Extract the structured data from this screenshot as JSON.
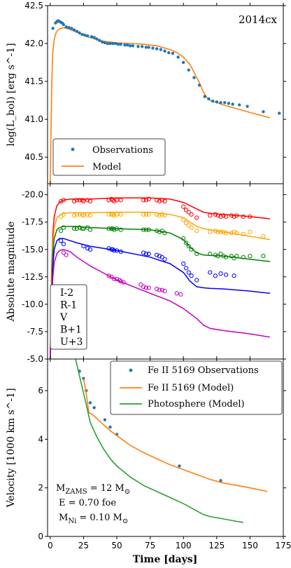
{
  "colors": {
    "obs": "#1f77b4",
    "model": "#ff7f0e",
    "photosphere": "#2ca02c",
    "I": "#ff0000",
    "R": "#ffa500",
    "V": "#008000",
    "B": "#0000ff",
    "U": "#c000c0"
  },
  "xlabel": "Time [days]",
  "xlim": [
    -2,
    175
  ],
  "xticks": [
    "0",
    "25",
    "50",
    "75",
    "100",
    "125",
    "150",
    "175"
  ],
  "chart_data": [
    {
      "type": "scatter",
      "title": "2014cx",
      "ylabel": "log(L_bol) [erg s^-1]",
      "ylim": [
        40.15,
        42.5
      ],
      "yticks": [
        "40.5",
        "41.0",
        "41.5",
        "42.0",
        "42.5"
      ],
      "legend_position": "bottom-left",
      "series": [
        {
          "name": "Observations",
          "style": "points",
          "x": [
            2,
            4,
            5,
            6,
            7,
            8,
            9,
            10,
            12,
            14,
            16,
            18,
            20,
            22,
            24,
            26,
            28,
            31,
            33,
            35,
            37,
            39,
            41,
            43,
            45,
            47,
            49,
            51,
            53,
            56,
            58,
            60,
            62,
            66,
            69,
            72,
            74,
            77,
            80,
            83,
            86,
            89,
            92,
            96,
            100,
            104,
            108,
            112,
            116,
            119,
            122,
            125,
            128,
            131,
            134,
            137,
            142,
            148,
            160,
            172
          ],
          "y": [
            42.2,
            42.27,
            42.29,
            42.3,
            42.29,
            42.28,
            42.27,
            42.25,
            42.22,
            42.21,
            42.2,
            42.18,
            42.16,
            42.14,
            42.12,
            42.11,
            42.1,
            42.09,
            42.08,
            42.06,
            42.04,
            42.02,
            42.01,
            42.0,
            42.0,
            42.0,
            42.0,
            41.99,
            41.99,
            41.98,
            41.98,
            41.97,
            41.97,
            41.96,
            41.96,
            41.95,
            41.95,
            41.94,
            41.93,
            41.92,
            41.9,
            41.88,
            41.87,
            41.82,
            41.75,
            41.65,
            41.55,
            41.45,
            41.3,
            41.27,
            41.24,
            41.23,
            41.22,
            41.22,
            41.21,
            41.2,
            41.19,
            41.17,
            41.1,
            41.08
          ]
        },
        {
          "name": "Model",
          "style": "line",
          "x": [
            0,
            0.5,
            1,
            1.5,
            2,
            3,
            4,
            5,
            6,
            8,
            10,
            12,
            14,
            17,
            20,
            25,
            30,
            35,
            40,
            50,
            60,
            70,
            80,
            90,
            95,
            100,
            105,
            108,
            112,
            115,
            118,
            120,
            125,
            130,
            140,
            150,
            165
          ],
          "y": [
            40.15,
            40.8,
            41.3,
            41.7,
            41.9,
            42.05,
            42.12,
            42.16,
            42.18,
            42.2,
            42.21,
            42.2,
            42.19,
            42.17,
            42.15,
            42.11,
            42.08,
            42.05,
            42.03,
            42.01,
            42.0,
            41.99,
            41.97,
            41.92,
            41.88,
            41.82,
            41.72,
            41.62,
            41.48,
            41.36,
            41.28,
            41.25,
            41.22,
            41.19,
            41.14,
            41.09,
            41.02
          ]
        }
      ]
    },
    {
      "type": "scatter",
      "ylabel": "Absolute magnitude",
      "ylim": [
        -21.0,
        -5.0
      ],
      "yticks": [
        "-20.0",
        "-17.5",
        "-15.0",
        "-12.5",
        "-10.0",
        "-7.5",
        "-5.0"
      ],
      "legend_position": "bottom-left",
      "series": [
        {
          "name": "I-2",
          "color_key": "I",
          "obs_x": [
            8,
            10,
            18,
            20,
            22,
            24,
            25,
            28,
            30,
            44,
            46,
            47,
            48,
            50,
            53,
            70,
            72,
            74,
            80,
            82,
            84,
            86,
            100,
            102,
            104,
            106,
            110,
            120,
            124,
            126,
            128,
            130,
            132,
            136,
            138,
            140,
            145,
            150
          ],
          "obs_y": [
            -19.4,
            -19.5,
            -19.4,
            -19.5,
            -19.5,
            -19.5,
            -19.4,
            -19.5,
            -19.4,
            -19.5,
            -19.6,
            -19.5,
            -19.4,
            -19.5,
            -19.5,
            -19.5,
            -19.5,
            -19.6,
            -19.5,
            -19.4,
            -19.5,
            -19.4,
            -18.9,
            -18.6,
            -18.4,
            -18.2,
            -17.9,
            -18.1,
            -18.2,
            -18.1,
            -18.0,
            -18.1,
            -18.0,
            -18.1,
            -18.0,
            -18.1,
            -18.0,
            -18.0
          ],
          "model_x": [
            0,
            1,
            2,
            3,
            5,
            7,
            10,
            15,
            20,
            30,
            50,
            75,
            90,
            100,
            105,
            110,
            115,
            120,
            130,
            150,
            165
          ],
          "model_y": [
            -5.0,
            -13.0,
            -16.5,
            -18.0,
            -19.0,
            -19.3,
            -19.5,
            -19.6,
            -19.6,
            -19.6,
            -19.7,
            -19.7,
            -19.6,
            -19.3,
            -19.0,
            -18.7,
            -18.4,
            -18.3,
            -18.2,
            -18.0,
            -17.8
          ]
        },
        {
          "name": "R-1",
          "color_key": "R",
          "obs_x": [
            8,
            10,
            18,
            20,
            22,
            24,
            25,
            28,
            30,
            44,
            46,
            47,
            48,
            50,
            53,
            70,
            72,
            74,
            80,
            82,
            84,
            86,
            100,
            102,
            104,
            106,
            110,
            120,
            124,
            126,
            128,
            130,
            132,
            136,
            138,
            140,
            145,
            150,
            160
          ],
          "obs_y": [
            -18.0,
            -18.2,
            -18.1,
            -18.2,
            -18.2,
            -18.2,
            -18.1,
            -18.2,
            -18.1,
            -18.2,
            -18.2,
            -18.2,
            -18.1,
            -18.2,
            -18.2,
            -18.2,
            -18.2,
            -18.2,
            -18.2,
            -18.1,
            -18.2,
            -18.1,
            -17.7,
            -17.4,
            -17.2,
            -17.0,
            -16.7,
            -16.6,
            -16.7,
            -16.6,
            -16.6,
            -16.6,
            -16.5,
            -16.5,
            -16.6,
            -16.5,
            -16.4,
            -16.6,
            -16.2
          ],
          "model_x": [
            0,
            1,
            2,
            3,
            5,
            7,
            10,
            15,
            20,
            30,
            50,
            75,
            90,
            100,
            105,
            110,
            115,
            120,
            130,
            150,
            165
          ],
          "model_y": [
            -5.0,
            -12.0,
            -15.5,
            -17.0,
            -17.9,
            -18.1,
            -18.3,
            -18.35,
            -18.35,
            -18.35,
            -18.4,
            -18.4,
            -18.2,
            -17.9,
            -17.5,
            -17.1,
            -16.9,
            -16.8,
            -16.6,
            -16.2,
            -15.9
          ]
        },
        {
          "name": "V",
          "color_key": "V",
          "obs_x": [
            8,
            10,
            18,
            20,
            22,
            24,
            25,
            28,
            30,
            44,
            46,
            47,
            48,
            50,
            53,
            70,
            72,
            74,
            80,
            82,
            84,
            86,
            100,
            102,
            104,
            106,
            110,
            120,
            124,
            126,
            128,
            130,
            132,
            136,
            138,
            140,
            145,
            150,
            160
          ],
          "obs_y": [
            -16.7,
            -17.0,
            -16.9,
            -16.9,
            -17.0,
            -16.9,
            -16.9,
            -17.0,
            -16.8,
            -16.9,
            -16.9,
            -16.9,
            -16.8,
            -16.9,
            -16.8,
            -16.8,
            -16.8,
            -16.8,
            -16.7,
            -16.6,
            -16.7,
            -16.5,
            -16.0,
            -15.6,
            -15.3,
            -15.0,
            -14.6,
            -14.6,
            -14.5,
            -14.4,
            -14.6,
            -14.4,
            -14.3,
            -14.4,
            -14.2,
            -14.4,
            -14.3,
            -14.4,
            -14.4
          ],
          "model_x": [
            0,
            1,
            2,
            3,
            5,
            7,
            10,
            15,
            20,
            30,
            50,
            75,
            90,
            100,
            105,
            110,
            115,
            120,
            130,
            150,
            165
          ],
          "model_y": [
            -5.0,
            -11.0,
            -14.5,
            -16.0,
            -16.8,
            -17.0,
            -17.1,
            -17.1,
            -17.1,
            -17.0,
            -16.9,
            -16.8,
            -16.5,
            -15.9,
            -15.2,
            -14.7,
            -14.5,
            -14.45,
            -14.4,
            -14.1,
            -13.9
          ]
        },
        {
          "name": "B+1",
          "color_key": "B",
          "obs_x": [
            8,
            10,
            25,
            28,
            30,
            44,
            46,
            47,
            48,
            50,
            53,
            70,
            72,
            74,
            80,
            82,
            84,
            86,
            100,
            102,
            104,
            106,
            110,
            120,
            124,
            128,
            132,
            138
          ],
          "obs_y": [
            -15.8,
            -15.5,
            -15.3,
            -15.1,
            -15.0,
            -15.1,
            -15.0,
            -15.0,
            -14.9,
            -14.9,
            -14.8,
            -14.7,
            -14.6,
            -14.6,
            -14.5,
            -14.4,
            -14.3,
            -14.1,
            -13.7,
            -13.3,
            -12.9,
            -12.6,
            -12.2,
            -12.9,
            -12.6,
            -12.8,
            -12.7,
            -12.6
          ],
          "model_x": [
            0,
            1,
            2,
            3,
            5,
            7,
            10,
            15,
            20,
            30,
            50,
            75,
            90,
            100,
            105,
            110,
            115,
            120,
            130,
            150,
            165
          ],
          "model_y": [
            -5.0,
            -10.5,
            -13.5,
            -15.0,
            -15.8,
            -16.0,
            -16.0,
            -15.8,
            -15.6,
            -15.3,
            -14.9,
            -14.3,
            -13.7,
            -12.9,
            -12.1,
            -11.6,
            -11.5,
            -11.45,
            -11.4,
            -11.2,
            -11.0
          ]
        },
        {
          "name": "U+3",
          "color_key": "U",
          "obs_x": [
            10,
            12,
            44,
            46,
            48,
            50,
            52,
            53,
            55,
            68,
            70,
            72,
            74,
            80,
            82,
            84,
            86,
            95,
            98
          ],
          "obs_y": [
            -14.7,
            -14.5,
            -12.6,
            -12.5,
            -12.3,
            -12.3,
            -12.2,
            -12.1,
            -12.0,
            -11.8,
            -11.6,
            -11.5,
            -11.5,
            -11.4,
            -11.3,
            -11.3,
            -11.2,
            -11.0,
            -10.9
          ],
          "model_x": [
            0,
            1,
            2,
            3,
            5,
            7,
            10,
            15,
            20,
            30,
            50,
            75,
            90,
            100,
            110,
            115,
            120,
            130,
            150,
            165
          ],
          "model_y": [
            -5.0,
            -10.0,
            -12.5,
            -13.8,
            -14.6,
            -14.9,
            -15.0,
            -14.8,
            -14.3,
            -13.5,
            -12.2,
            -11.0,
            -10.3,
            -9.6,
            -8.7,
            -8.1,
            -7.8,
            -7.6,
            -7.3,
            -7.0
          ]
        }
      ]
    },
    {
      "type": "line",
      "ylabel": "Velocity [1000 km s^-1]",
      "ylim": [
        0,
        7.3
      ],
      "yticks": [
        "0",
        "2",
        "4",
        "6"
      ],
      "legend_position": "top-right",
      "series": [
        {
          "name": "Fe II 5169 Observations",
          "style": "points",
          "color_key": "obs",
          "x": [
            22,
            25,
            27,
            30,
            33,
            41,
            45,
            50,
            97,
            128
          ],
          "y": [
            6.8,
            6.5,
            6.0,
            5.5,
            5.3,
            4.8,
            4.5,
            4.2,
            2.9,
            2.3
          ]
        },
        {
          "name": "Fe II 5169 (Model)",
          "style": "line",
          "color_key": "model",
          "x": [
            25,
            27,
            29,
            32,
            35,
            40,
            45,
            50,
            60,
            70,
            80,
            90,
            100,
            110,
            120,
            130,
            140,
            150,
            163
          ],
          "y": [
            6.5,
            5.9,
            5.1,
            5.0,
            4.85,
            4.6,
            4.35,
            4.15,
            3.75,
            3.45,
            3.2,
            2.95,
            2.75,
            2.55,
            2.35,
            2.2,
            2.1,
            2.0,
            1.85
          ]
        },
        {
          "name": "Photosphere (Model)",
          "style": "line",
          "color_key": "photosphere",
          "x": [
            19,
            22,
            25,
            28,
            30,
            35,
            40,
            45,
            50,
            60,
            70,
            80,
            90,
            100,
            110,
            115,
            120,
            130,
            140,
            145
          ],
          "y": [
            7.3,
            6.6,
            5.9,
            5.2,
            4.7,
            4.1,
            3.6,
            3.2,
            2.9,
            2.45,
            2.1,
            1.85,
            1.6,
            1.35,
            1.05,
            0.9,
            0.82,
            0.72,
            0.62,
            0.58
          ]
        }
      ],
      "annotation": {
        "mzams_label": "M",
        "mzams_sub": "ZAMS",
        "mzams_value": " = 12 M",
        "sun_symbol": "⊙",
        "energy": "E = 0.70 foe",
        "mni_label": "M",
        "mni_sub": "Ni",
        "mni_value": " = 0.10 M"
      }
    }
  ]
}
